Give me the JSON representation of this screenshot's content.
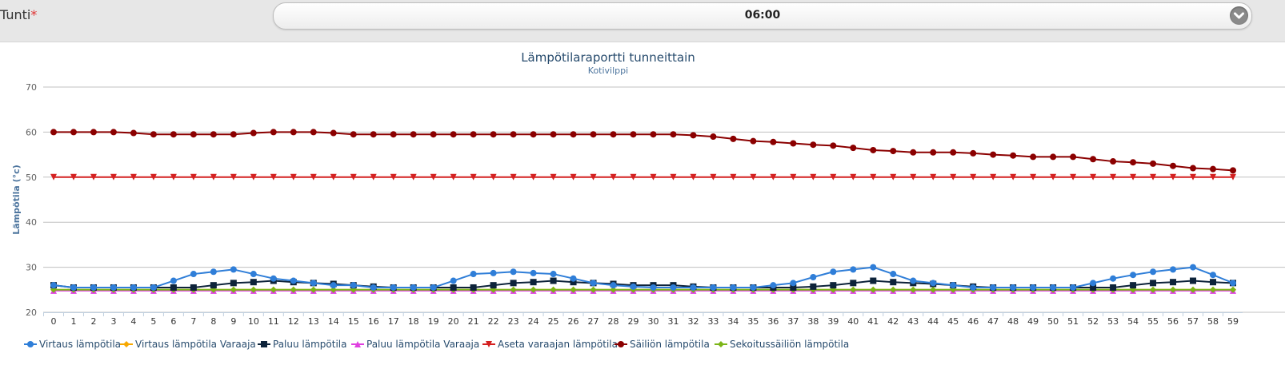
{
  "form": {
    "field_label": "Tunti",
    "required_mark": "*",
    "selected_value": "06:00"
  },
  "chart_data": {
    "type": "line",
    "title": "Lämpötilaraportti tunneittain",
    "subtitle": "Kotivilppi",
    "xlabel": "",
    "ylabel": "Lämpötila (°c)",
    "ylim": [
      20,
      70
    ],
    "yticks": [
      20,
      30,
      40,
      50,
      60,
      70
    ],
    "grid": true,
    "legend_position": "bottom-left",
    "x": [
      0,
      1,
      2,
      3,
      4,
      5,
      6,
      7,
      8,
      9,
      10,
      11,
      12,
      13,
      14,
      15,
      16,
      17,
      18,
      19,
      20,
      21,
      22,
      23,
      24,
      25,
      26,
      27,
      28,
      29,
      30,
      31,
      32,
      33,
      34,
      35,
      36,
      37,
      38,
      39,
      40,
      41,
      42,
      43,
      44,
      45,
      46,
      47,
      48,
      49,
      50,
      51,
      52,
      53,
      54,
      55,
      56,
      57,
      58,
      59
    ],
    "series": [
      {
        "name": "Virtaus lämpötila",
        "color": "#2f7ed8",
        "marker": "circle",
        "values": [
          26,
          25.5,
          25.5,
          25.5,
          25.5,
          25.5,
          27,
          28.5,
          29,
          29.5,
          28.5,
          27.5,
          27,
          26.5,
          26,
          26,
          25.5,
          25.5,
          25.5,
          25.5,
          27,
          28.5,
          28.7,
          29,
          28.7,
          28.5,
          27.5,
          26.5,
          26,
          25.7,
          25.5,
          25.5,
          25.5,
          25.5,
          25.5,
          25.5,
          26,
          26.5,
          27.8,
          29,
          29.5,
          30,
          28.5,
          27,
          26.5,
          26,
          25.5,
          25.5,
          25.5,
          25.5,
          25.5,
          25.5,
          26.5,
          27.5,
          28.3,
          29,
          29.5,
          30,
          28.3,
          26.5
        ]
      },
      {
        "name": "Virtaus lämpötila Varaaja",
        "color": "#f7a800",
        "marker": "diamond",
        "values": [
          25,
          25,
          25,
          25,
          25,
          25,
          25,
          25,
          25,
          25,
          25,
          25,
          25,
          25,
          25,
          25,
          25,
          25,
          25,
          25,
          25,
          25,
          25,
          25,
          25,
          25,
          25,
          25,
          25,
          25,
          25,
          25,
          25,
          25,
          25,
          25,
          25,
          25,
          25,
          25,
          25,
          25,
          25,
          25,
          25,
          25,
          25,
          25,
          25,
          25,
          25,
          25,
          25,
          25,
          25,
          25,
          25,
          25,
          25,
          25
        ]
      },
      {
        "name": "Paluu lämpötila",
        "color": "#0d233a",
        "marker": "square",
        "values": [
          26,
          25.5,
          25.5,
          25.5,
          25.5,
          25.5,
          25.5,
          25.5,
          26,
          26.5,
          26.7,
          27,
          26.7,
          26.5,
          26.3,
          26,
          25.7,
          25.5,
          25.5,
          25.5,
          25.5,
          25.5,
          26,
          26.5,
          26.7,
          27,
          26.7,
          26.5,
          26.3,
          26,
          26,
          26,
          25.7,
          25.5,
          25.5,
          25.5,
          25.5,
          25.5,
          25.7,
          26,
          26.5,
          27,
          26.7,
          26.5,
          26.3,
          26,
          25.7,
          25.5,
          25.5,
          25.5,
          25.5,
          25.5,
          25.5,
          25.5,
          26,
          26.5,
          26.7,
          27,
          26.7,
          26.5
        ]
      },
      {
        "name": "Paluu lämpötila Varaaja",
        "color": "#e040e0",
        "marker": "triangle",
        "values": [
          24.8,
          24.8,
          24.8,
          24.8,
          24.8,
          24.8,
          24.8,
          24.8,
          24.8,
          24.8,
          24.8,
          24.8,
          24.8,
          24.8,
          24.8,
          24.8,
          24.8,
          24.8,
          24.8,
          24.8,
          24.8,
          24.8,
          24.8,
          24.8,
          24.8,
          24.8,
          24.8,
          24.8,
          24.8,
          24.8,
          24.8,
          24.8,
          24.8,
          24.8,
          24.8,
          24.8,
          24.8,
          24.8,
          24.8,
          24.8,
          24.8,
          24.8,
          24.8,
          24.8,
          24.8,
          24.8,
          24.8,
          24.8,
          24.8,
          24.8,
          24.8,
          24.8,
          24.8,
          24.8,
          24.8,
          24.8,
          24.8,
          24.8,
          24.8,
          24.8
        ]
      },
      {
        "name": "Aseta varaajan lämpötila",
        "color": "#d42020",
        "marker": "triangle-down",
        "values": [
          50,
          50,
          50,
          50,
          50,
          50,
          50,
          50,
          50,
          50,
          50,
          50,
          50,
          50,
          50,
          50,
          50,
          50,
          50,
          50,
          50,
          50,
          50,
          50,
          50,
          50,
          50,
          50,
          50,
          50,
          50,
          50,
          50,
          50,
          50,
          50,
          50,
          50,
          50,
          50,
          50,
          50,
          50,
          50,
          50,
          50,
          50,
          50,
          50,
          50,
          50,
          50,
          50,
          50,
          50,
          50,
          50,
          50,
          50,
          50
        ]
      },
      {
        "name": "Säiliön lämpötila",
        "color": "#8b0000",
        "marker": "circle",
        "values": [
          60,
          60,
          60,
          60,
          59.8,
          59.5,
          59.5,
          59.5,
          59.5,
          59.5,
          59.8,
          60,
          60,
          60,
          59.8,
          59.5,
          59.5,
          59.5,
          59.5,
          59.5,
          59.5,
          59.5,
          59.5,
          59.5,
          59.5,
          59.5,
          59.5,
          59.5,
          59.5,
          59.5,
          59.5,
          59.5,
          59.3,
          59,
          58.5,
          58,
          57.8,
          57.5,
          57.2,
          57,
          56.5,
          56,
          55.8,
          55.5,
          55.5,
          55.5,
          55.3,
          55,
          54.8,
          54.5,
          54.5,
          54.5,
          54,
          53.5,
          53.3,
          53,
          52.5,
          52,
          51.8,
          51.5
        ]
      },
      {
        "name": "Sekoitussäiliön lämpötila",
        "color": "#7cb518",
        "marker": "diamond",
        "values": [
          25,
          25,
          25,
          25,
          25,
          25,
          25,
          25,
          25,
          25,
          25,
          25,
          25,
          25,
          25,
          25,
          25,
          25,
          25,
          25,
          25,
          25,
          25,
          25,
          25,
          25,
          25,
          25,
          25,
          25,
          25,
          25,
          25,
          25,
          25,
          25,
          25,
          25,
          25,
          25,
          25,
          25,
          25,
          25,
          25,
          25,
          25,
          25,
          25,
          25,
          25,
          25,
          25,
          25,
          25,
          25,
          25,
          25,
          25,
          25
        ]
      }
    ]
  }
}
